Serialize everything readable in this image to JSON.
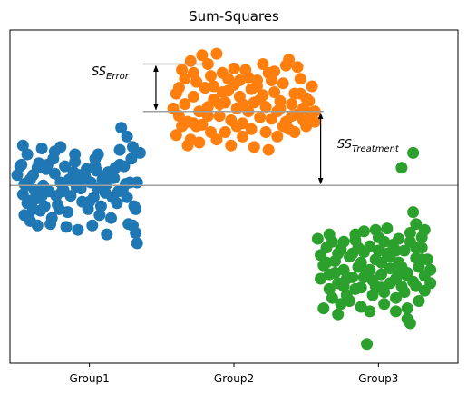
{
  "chart_data": {
    "type": "scatter",
    "title": "Sum-Squares",
    "xlabel": "",
    "ylabel": "",
    "grid": false,
    "x_tick_labels": [
      "Group1",
      "Group2",
      "Group3"
    ],
    "xlim": [
      -0.55,
      2.55
    ],
    "ylim": [
      -1.2,
      1.05
    ],
    "reference_lines": {
      "grand_mean": 0.0,
      "group2_mean": 0.5,
      "error_top": 0.82,
      "line_color": "#a0a0a0"
    },
    "annotations": [
      {
        "base": "SS",
        "subscript": "Error"
      },
      {
        "base": "SS",
        "subscript": "Treatment"
      }
    ],
    "series": [
      {
        "color": "#1f77b4",
        "points": [
          [
            -0.5,
            0.07
          ],
          [
            -0.48,
            0.13
          ],
          [
            -0.45,
            0.01
          ],
          [
            -0.46,
            -0.06
          ],
          [
            -0.43,
            -0.12
          ],
          [
            -0.41,
            0.04
          ],
          [
            -0.38,
            -0.03
          ],
          [
            -0.36,
            0.12
          ],
          [
            -0.34,
            -0.17
          ],
          [
            -0.32,
            0.0
          ],
          [
            -0.47,
            0.14
          ],
          [
            -0.45,
            -0.2
          ],
          [
            -0.42,
            -0.21
          ],
          [
            -0.39,
            0.07
          ],
          [
            -0.37,
            -0.09
          ],
          [
            -0.35,
            0.15
          ],
          [
            -0.33,
            -0.07
          ],
          [
            -0.3,
            0.11
          ],
          [
            -0.28,
            -0.04
          ],
          [
            -0.26,
            -0.22
          ],
          [
            -0.24,
            0.08
          ],
          [
            -0.22,
            -0.13
          ],
          [
            -0.2,
            0.02
          ],
          [
            -0.18,
            -0.03
          ],
          [
            -0.17,
            0.13
          ],
          [
            -0.15,
            -0.18
          ],
          [
            -0.13,
            -0.07
          ],
          [
            -0.11,
            0.09
          ],
          [
            -0.09,
            -0.01
          ],
          [
            -0.07,
            0.07
          ],
          [
            -0.05,
            -0.11
          ],
          [
            -0.03,
            0.06
          ],
          [
            -0.01,
            -0.16
          ],
          [
            0.01,
            0.02
          ],
          [
            0.03,
            -0.08
          ],
          [
            0.05,
            0.1
          ],
          [
            0.07,
            -0.2
          ],
          [
            0.09,
            0.04
          ],
          [
            0.11,
            -0.05
          ],
          [
            0.13,
            0.09
          ],
          [
            0.15,
            -0.22
          ],
          [
            0.17,
            0.05
          ],
          [
            0.19,
            -0.12
          ],
          [
            0.21,
            0.14
          ],
          [
            0.23,
            -0.03
          ],
          [
            0.25,
            0.01
          ],
          [
            0.27,
            -0.26
          ],
          [
            0.29,
            0.18
          ],
          [
            0.31,
            -0.14
          ],
          [
            0.33,
            0.02
          ],
          [
            -0.44,
            0.0
          ],
          [
            -0.4,
            -0.1
          ],
          [
            -0.31,
            -0.14
          ],
          [
            -0.29,
            0.14
          ],
          [
            -0.25,
            0.18
          ],
          [
            -0.21,
            -0.16
          ],
          [
            -0.19,
            -0.04
          ],
          [
            -0.14,
            0.04
          ],
          [
            -0.1,
            0.16
          ],
          [
            -0.06,
            -0.02
          ],
          [
            -0.02,
            0.11
          ],
          [
            0.0,
            -0.11
          ],
          [
            0.04,
            0.13
          ],
          [
            0.08,
            -0.14
          ],
          [
            0.12,
            0.01
          ],
          [
            0.16,
            -0.08
          ],
          [
            0.2,
            -0.04
          ],
          [
            0.24,
            0.13
          ],
          [
            0.28,
            0.02
          ],
          [
            0.32,
            -0.16
          ],
          [
            -0.41,
            -0.24
          ],
          [
            -0.36,
            -0.27
          ],
          [
            -0.27,
            -0.26
          ],
          [
            -0.16,
            -0.28
          ],
          [
            -0.08,
            -0.3
          ],
          [
            0.02,
            -0.27
          ],
          [
            0.12,
            -0.33
          ],
          [
            0.32,
            -0.32
          ],
          [
            0.3,
            -0.27
          ],
          [
            0.33,
            -0.39
          ],
          [
            -0.33,
            0.25
          ],
          [
            -0.1,
            0.21
          ],
          [
            0.06,
            0.21
          ],
          [
            0.21,
            0.24
          ],
          [
            0.3,
            0.26
          ],
          [
            -0.46,
            0.27
          ],
          [
            -0.43,
            0.21
          ],
          [
            -0.2,
            0.26
          ],
          [
            0.04,
            0.18
          ],
          [
            0.22,
            0.39
          ],
          [
            -0.24,
            0.23
          ],
          [
            0.26,
            0.33
          ],
          [
            0.35,
            0.22
          ],
          [
            0.14,
            0.06
          ],
          [
            -0.07,
            0.02
          ],
          [
            0.18,
            0.12
          ],
          [
            0.06,
            -0.02
          ],
          [
            -0.23,
            -0.07
          ],
          [
            -0.39,
            -0.16
          ],
          [
            0.26,
            -0.08
          ]
        ]
      },
      {
        "color": "#ff7f0e",
        "points": [
          [
            0.58,
            0.52
          ],
          [
            0.6,
            0.62
          ],
          [
            0.62,
            0.47
          ],
          [
            0.64,
            0.78
          ],
          [
            0.66,
            0.55
          ],
          [
            0.68,
            0.43
          ],
          [
            0.7,
            0.84
          ],
          [
            0.72,
            0.6
          ],
          [
            0.74,
            0.7
          ],
          [
            0.76,
            0.5
          ],
          [
            0.78,
            0.41
          ],
          [
            0.8,
            0.66
          ],
          [
            0.82,
            0.53
          ],
          [
            0.84,
            0.74
          ],
          [
            0.86,
            0.58
          ],
          [
            0.88,
            0.89
          ],
          [
            0.9,
            0.47
          ],
          [
            0.92,
            0.63
          ],
          [
            0.94,
            0.56
          ],
          [
            0.96,
            0.72
          ],
          [
            0.98,
            0.44
          ],
          [
            1.0,
            0.68
          ],
          [
            1.02,
            0.52
          ],
          [
            1.04,
            0.6
          ],
          [
            1.06,
            0.42
          ],
          [
            1.08,
            0.78
          ],
          [
            1.1,
            0.5
          ],
          [
            1.12,
            0.65
          ],
          [
            1.14,
            0.56
          ],
          [
            1.16,
            0.71
          ],
          [
            1.18,
            0.46
          ],
          [
            1.2,
            0.61
          ],
          [
            1.22,
            0.53
          ],
          [
            1.24,
            0.76
          ],
          [
            1.26,
            0.45
          ],
          [
            1.28,
            0.63
          ],
          [
            1.3,
            0.5
          ],
          [
            1.32,
            0.57
          ],
          [
            1.34,
            0.69
          ],
          [
            1.36,
            0.43
          ],
          [
            1.38,
            0.85
          ],
          [
            1.4,
            0.55
          ],
          [
            1.42,
            0.62
          ],
          [
            1.44,
            0.48
          ],
          [
            1.46,
            0.72
          ],
          [
            1.48,
            0.52
          ],
          [
            1.5,
            0.59
          ],
          [
            1.52,
            0.45
          ],
          [
            1.54,
            0.67
          ],
          [
            1.56,
            0.5
          ],
          [
            0.6,
            0.34
          ],
          [
            0.7,
            0.31
          ],
          [
            0.76,
            0.29
          ],
          [
            0.88,
            0.31
          ],
          [
            0.98,
            0.27
          ],
          [
            1.06,
            0.33
          ],
          [
            1.14,
            0.26
          ],
          [
            1.24,
            0.24
          ],
          [
            1.3,
            0.33
          ],
          [
            1.38,
            0.38
          ],
          [
            0.64,
            0.4
          ],
          [
            0.74,
            0.4
          ],
          [
            0.84,
            0.36
          ],
          [
            0.94,
            0.36
          ],
          [
            1.02,
            0.4
          ],
          [
            1.12,
            0.38
          ],
          [
            1.22,
            0.36
          ],
          [
            1.34,
            0.4
          ],
          [
            1.42,
            0.36
          ],
          [
            1.5,
            0.4
          ],
          [
            0.62,
            0.66
          ],
          [
            0.72,
            0.76
          ],
          [
            0.82,
            0.82
          ],
          [
            0.92,
            0.76
          ],
          [
            1.0,
            0.79
          ],
          [
            1.1,
            0.73
          ],
          [
            1.2,
            0.82
          ],
          [
            1.28,
            0.77
          ],
          [
            1.36,
            0.81
          ],
          [
            1.44,
            0.8
          ],
          [
            0.66,
            0.72
          ],
          [
            0.78,
            0.88
          ],
          [
            0.86,
            0.67
          ],
          [
            1.04,
            0.71
          ],
          [
            1.16,
            0.67
          ],
          [
            1.26,
            0.71
          ],
          [
            1.46,
            0.62
          ],
          [
            1.52,
            0.57
          ],
          [
            1.54,
            0.49
          ],
          [
            1.56,
            0.43
          ],
          [
            0.72,
            0.42
          ],
          [
            0.9,
            0.55
          ],
          [
            1.06,
            0.55
          ],
          [
            1.18,
            0.58
          ],
          [
            1.32,
            0.52
          ],
          [
            1.4,
            0.47
          ],
          [
            1.48,
            0.44
          ],
          [
            0.68,
            0.27
          ],
          [
            0.82,
            0.47
          ],
          [
            0.96,
            0.64
          ]
        ]
      },
      {
        "color": "#2ca02c",
        "points": [
          [
            1.58,
            -0.36
          ],
          [
            1.6,
            -0.47
          ],
          [
            1.62,
            -0.54
          ],
          [
            1.64,
            -0.42
          ],
          [
            1.66,
            -0.6
          ],
          [
            1.68,
            -0.38
          ],
          [
            1.7,
            -0.51
          ],
          [
            1.72,
            -0.66
          ],
          [
            1.74,
            -0.43
          ],
          [
            1.76,
            -0.57
          ],
          [
            1.78,
            -0.74
          ],
          [
            1.8,
            -0.48
          ],
          [
            1.82,
            -0.62
          ],
          [
            1.84,
            -0.37
          ],
          [
            1.86,
            -0.55
          ],
          [
            1.88,
            -0.69
          ],
          [
            1.9,
            -0.45
          ],
          [
            1.92,
            -0.58
          ],
          [
            1.94,
            -0.41
          ],
          [
            1.96,
            -0.64
          ],
          [
            1.98,
            -0.5
          ],
          [
            2.0,
            -0.35
          ],
          [
            2.02,
            -0.6
          ],
          [
            2.04,
            -0.72
          ],
          [
            2.06,
            -0.46
          ],
          [
            2.08,
            -0.56
          ],
          [
            2.1,
            -0.4
          ],
          [
            2.12,
            -0.63
          ],
          [
            2.14,
            -0.52
          ],
          [
            2.16,
            -0.68
          ],
          [
            2.18,
            -0.44
          ],
          [
            2.2,
            -0.59
          ],
          [
            2.22,
            -0.38
          ],
          [
            2.24,
            -0.65
          ],
          [
            2.26,
            -0.49
          ],
          [
            2.28,
            -0.55
          ],
          [
            2.3,
            -0.42
          ],
          [
            2.32,
            -0.61
          ],
          [
            2.34,
            -0.5
          ],
          [
            2.36,
            -0.57
          ],
          [
            1.62,
            -0.83
          ],
          [
            1.68,
            -0.76
          ],
          [
            1.74,
            -0.8
          ],
          [
            1.8,
            -0.78
          ],
          [
            1.88,
            -0.82
          ],
          [
            1.96,
            -0.74
          ],
          [
            2.04,
            -0.8
          ],
          [
            2.12,
            -0.76
          ],
          [
            2.2,
            -0.83
          ],
          [
            2.28,
            -0.78
          ],
          [
            1.92,
            -1.07
          ],
          [
            1.94,
            -0.85
          ],
          [
            2.12,
            -0.85
          ],
          [
            2.2,
            -0.9
          ],
          [
            2.22,
            -0.93
          ],
          [
            1.72,
            -0.87
          ],
          [
            1.66,
            -0.33
          ],
          [
            1.76,
            -0.38
          ],
          [
            1.84,
            -0.33
          ],
          [
            1.9,
            -0.31
          ],
          [
            1.98,
            -0.3
          ],
          [
            2.06,
            -0.29
          ],
          [
            2.14,
            -0.36
          ],
          [
            2.22,
            -0.32
          ],
          [
            2.3,
            -0.35
          ],
          [
            2.32,
            -0.3
          ],
          [
            2.24,
            -0.18
          ],
          [
            2.16,
            0.12
          ],
          [
            2.24,
            0.22
          ],
          [
            2.26,
            -0.26
          ],
          [
            1.6,
            -0.63
          ],
          [
            1.66,
            -0.7
          ],
          [
            1.7,
            -0.59
          ],
          [
            1.78,
            -0.63
          ],
          [
            1.84,
            -0.7
          ],
          [
            1.9,
            -0.62
          ],
          [
            1.98,
            -0.68
          ],
          [
            2.02,
            -0.52
          ],
          [
            2.08,
            -0.66
          ],
          [
            2.14,
            -0.6
          ],
          [
            2.18,
            -0.72
          ],
          [
            2.26,
            -0.68
          ],
          [
            2.32,
            -0.71
          ],
          [
            2.36,
            -0.66
          ],
          [
            2.2,
            -0.61
          ],
          [
            2.04,
            -0.38
          ],
          [
            1.86,
            -0.42
          ],
          [
            1.72,
            -0.46
          ],
          [
            1.64,
            -0.52
          ],
          [
            2.3,
            -0.5
          ],
          [
            1.88,
            -0.52
          ],
          [
            2.0,
            -0.44
          ],
          [
            2.08,
            -0.48
          ],
          [
            1.76,
            -0.68
          ],
          [
            2.16,
            -0.55
          ],
          [
            1.94,
            -0.57
          ],
          [
            2.12,
            -0.44
          ],
          [
            2.26,
            -0.42
          ],
          [
            1.82,
            -0.46
          ],
          [
            2.02,
            -0.69
          ]
        ]
      }
    ]
  }
}
